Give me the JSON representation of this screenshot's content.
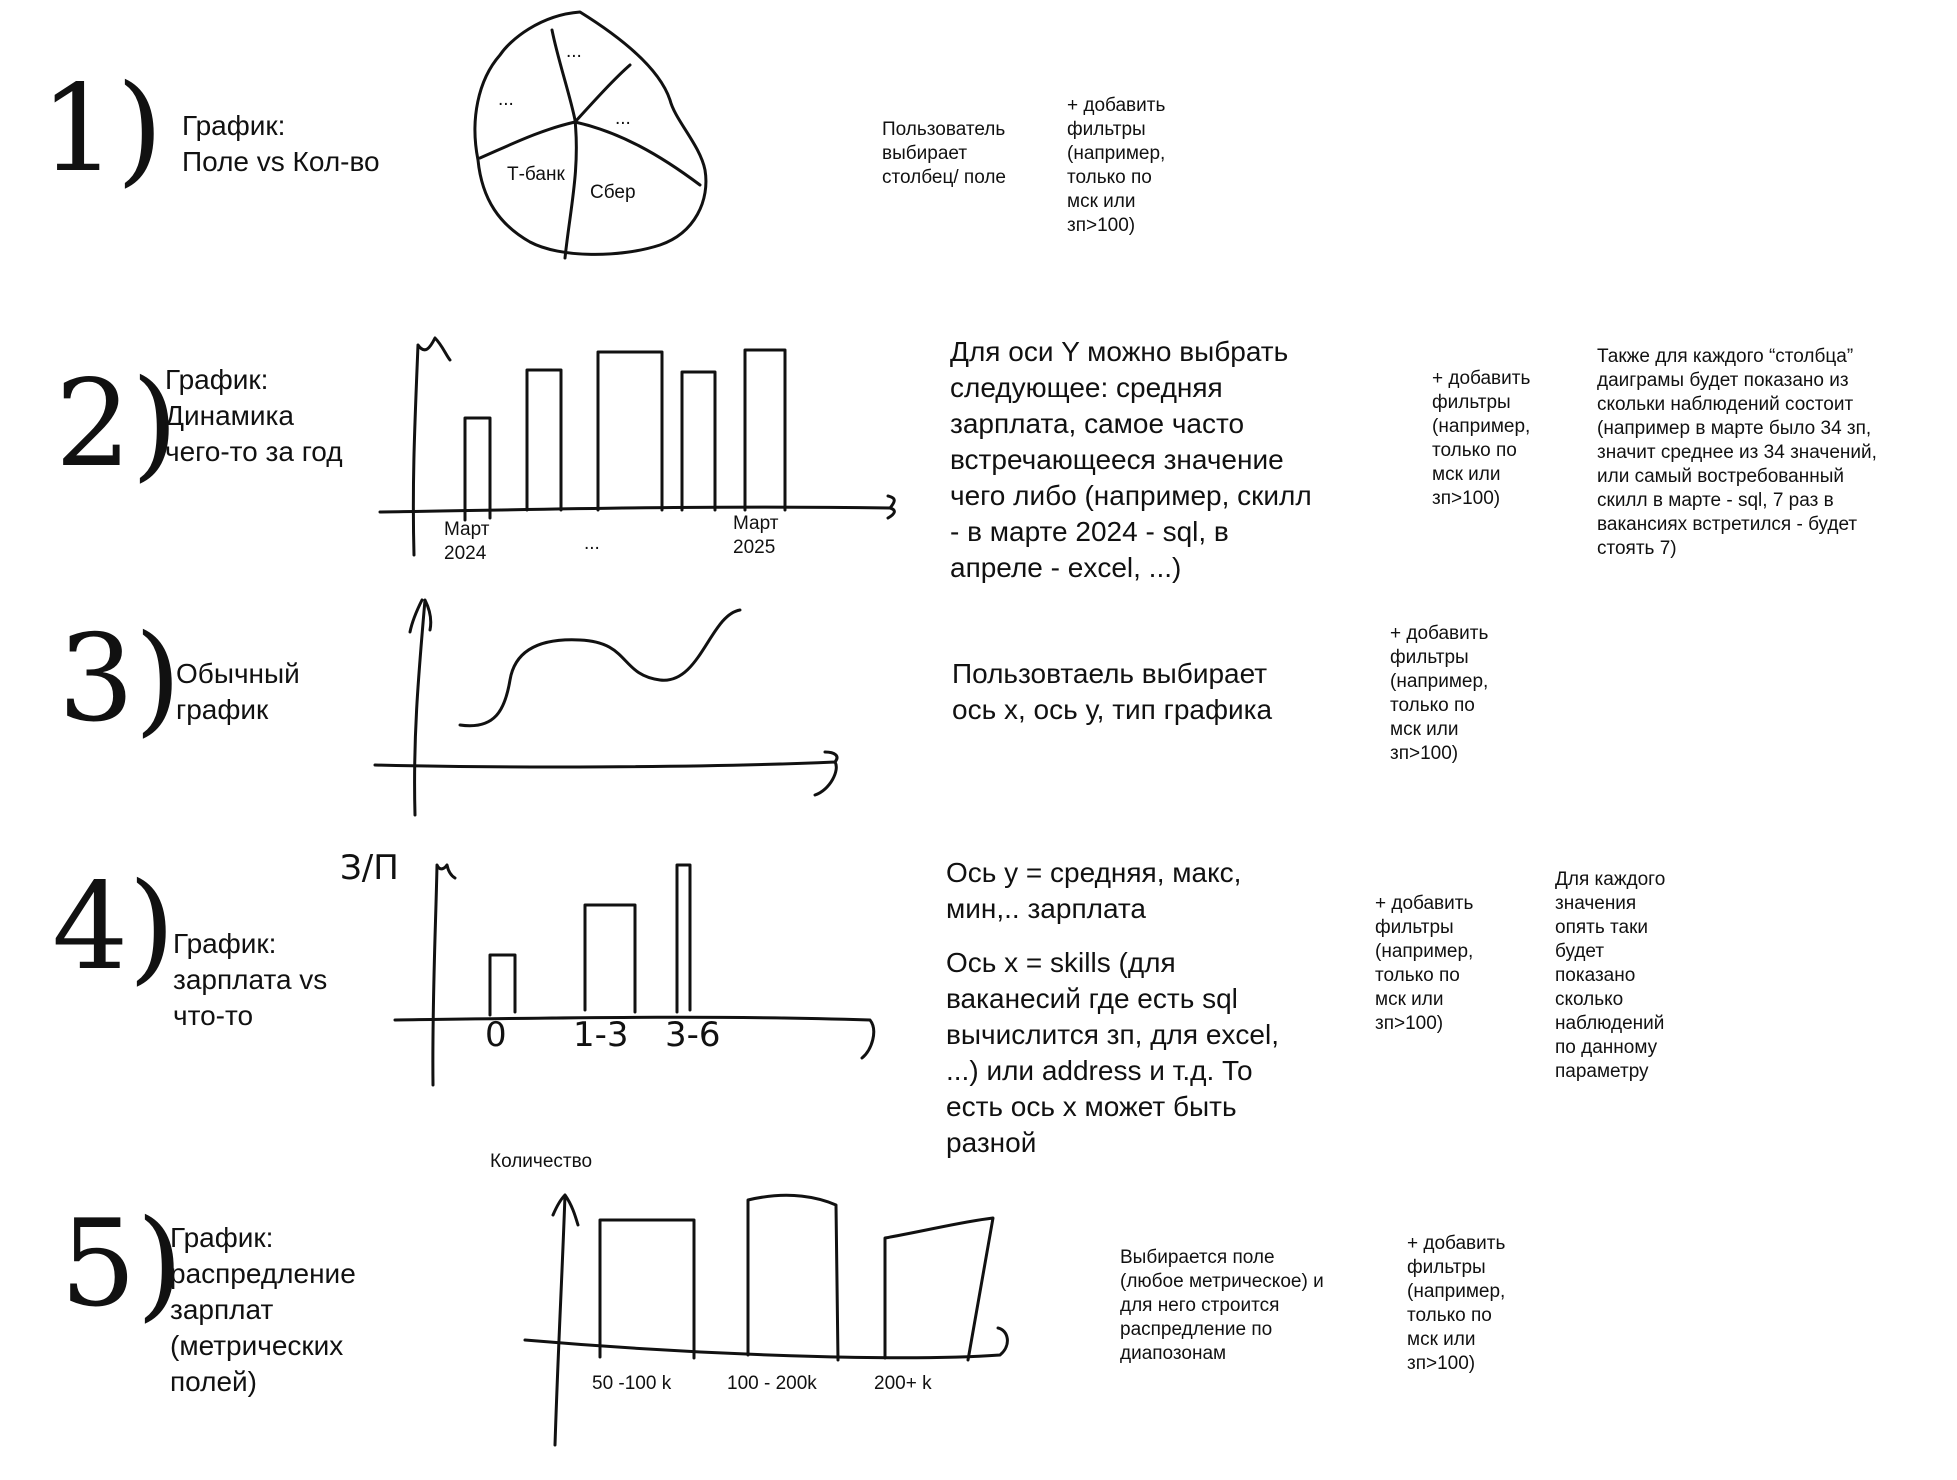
{
  "sections": [
    {
      "number": "1)",
      "title": "График:\nПоле vs Кол-во",
      "pie_labels": [
        "...",
        "...",
        "...",
        "Т-банк",
        "Сбер"
      ],
      "note": "Пользователь\nвыбирает\nстолбец/ поле",
      "filters": "+ добавить\nфильтры\n(например,\nтолько по\nмск или\nзп>100)"
    },
    {
      "number": "2)",
      "title": "График:\nДинамика\nчего-то за год",
      "tick_labels": [
        "Март\n2024",
        "...",
        "Март\n2025"
      ],
      "note": "Для оси Y можно выбрать\nследующее: средняя\nзарплата, самое часто\nвстречающееся значение\nчего либо (например, скилл\n- в марте 2024 - sql, в\nапреле - excel, ...)",
      "filters": "+ добавить\nфильтры\n(например,\nтолько по\nмск или\nзп>100)",
      "extra_note": "Также для каждого “столбца”\nдаиграмы будет показано из\nскольки наблюдений состоит\n(например в марте было 34 зп,\nзначит среднее из 34 значений,\nили самый востребованный\nскилл в марте - sql, 7 раз в\nвакансиях встретился - будет\nстоять 7)"
    },
    {
      "number": "3)",
      "title": "Обычный\nграфик",
      "note": "Пользовтаель выбирает\nось х, ось у, тип графика",
      "filters": "+ добавить\nфильтры\n(например,\nтолько по\nмск или\nзп>100)"
    },
    {
      "number": "4)",
      "title": "График:\nзарплата vs\nчто-то",
      "y_label": "З/П",
      "tick_labels": [
        "0",
        "1-3",
        "3-6"
      ],
      "note_y": "Ось у = средняя, макс,\nмин,.. зарплата",
      "note_x": "Ось х = skills (для\nваканесий где есть sql\nвычислится зп, для excel,\n...) или address  и т.д. То\nесть ось х может быть\nразной",
      "filters": "+ добавить\nфильтры\n(например,\nтолько по\nмск или\nзп>100)",
      "extra_note": "Для каждого\nзначения\nопять таки\nбудет\nпоказано\nсколько\nнаблюдений\nпо данному\nпараметру"
    },
    {
      "number": "5)",
      "title": "График:\nраспредление\nзарплат\n(метрических\nполей)",
      "y_label": "Количество",
      "tick_labels": [
        "50 -100 k",
        "100 - 200k",
        "200+ k"
      ],
      "note": "Выбирается поле\n(любое метрическое)  и\nдля него строится\nраспредление по\nдиапозонам",
      "filters": "+ добавить\nфильтры\n(например,\nтолько по\nмск или\nзп>100)"
    }
  ]
}
